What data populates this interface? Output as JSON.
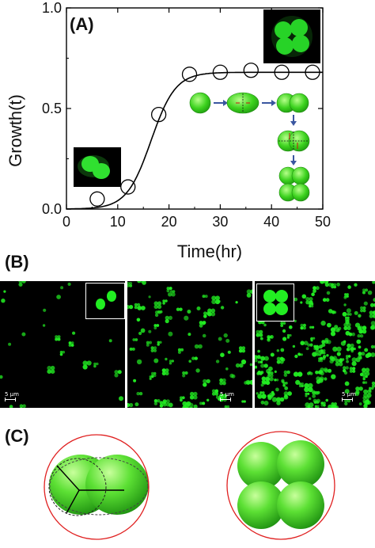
{
  "panel_labels": {
    "a": "(A)",
    "b": "(B)",
    "c": "(C)"
  },
  "chart_data": {
    "type": "scatter",
    "title": "",
    "xlabel": "Time(hr)",
    "ylabel": "Growth(t)",
    "xlim": [
      0,
      50
    ],
    "ylim": [
      0,
      1.0
    ],
    "x_ticks": [
      "0",
      "10",
      "20",
      "30",
      "40",
      "50"
    ],
    "y_ticks": [
      "0.0",
      "0.5",
      "1.0"
    ],
    "series": [
      {
        "marker": "open-circle",
        "x": [
          6,
          12,
          18,
          24,
          30,
          36,
          42,
          48
        ],
        "y": [
          0.05,
          0.11,
          0.47,
          0.67,
          0.68,
          0.69,
          0.68,
          0.68
        ]
      },
      {
        "marker": "solid-line",
        "fit": "sigmoid",
        "plateau": 0.68,
        "midpoint": 16.5,
        "steepness": 0.42
      }
    ],
    "grid": false,
    "colors": {
      "cell": "#33dd22",
      "arrow": "#3a56a0",
      "axis": "#000000"
    }
  },
  "scale_bar_label": "5 μm",
  "colors": {
    "fluorescence": "#22ee22",
    "outline_circle": "#e02020"
  }
}
